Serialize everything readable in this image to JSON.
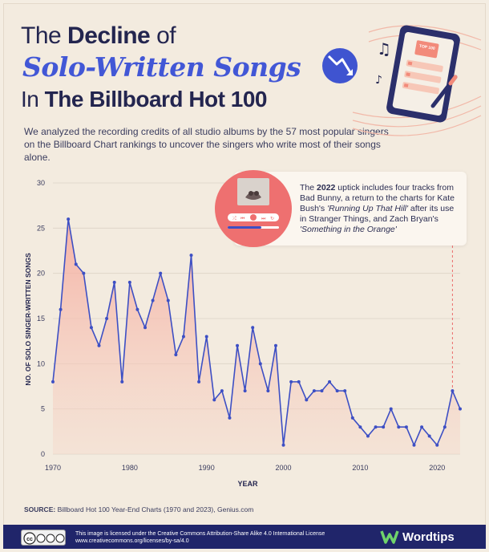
{
  "header": {
    "title_pre": "The ",
    "title_bold": "Decline",
    "title_post": " of",
    "title_line2": "Solo-Written Songs",
    "title_line3_pre": "In ",
    "title_line3_bold": "The Billboard Hot 100",
    "subtitle": "We analyzed the recording credits of all studio albums by the 57 most popular singers on the Billboard Chart rankings to uncover the singers who write most of their songs alone."
  },
  "illustration": {
    "phone_badge": "TOP 100"
  },
  "callout": {
    "pre": "The ",
    "year": "2022",
    "mid1": " uptick includes four tracks from Bad Bunny, a return to the charts for Kate Bush's ",
    "song1": "'Running Up That Hill'",
    "mid2": " after its use in Stranger Things, and Zach Bryan's ",
    "song2": "'Something in the Orange'"
  },
  "colors": {
    "line": "#3d4fc4",
    "area_top": "#f6a99c",
    "area_bottom": "#f6d9cb",
    "title_blue": "#4257d6",
    "navy": "#23254f",
    "callout_accent": "#ec6b6b"
  },
  "chart_data": {
    "type": "area",
    "title": "",
    "xlabel": "YEAR",
    "ylabel": "NO. OF SOLO SINGER-WRITTEN SONGS",
    "xlim": [
      1970,
      2023
    ],
    "ylim": [
      0,
      30
    ],
    "xticks": [
      1970,
      1980,
      1990,
      2000,
      2010,
      2020
    ],
    "yticks": [
      0,
      5,
      10,
      15,
      20,
      25,
      30
    ],
    "grid": "horizontal",
    "highlight_year": 2022,
    "x": [
      1970,
      1971,
      1972,
      1973,
      1974,
      1975,
      1976,
      1977,
      1978,
      1979,
      1980,
      1981,
      1982,
      1983,
      1984,
      1985,
      1986,
      1987,
      1988,
      1989,
      1990,
      1991,
      1992,
      1993,
      1994,
      1995,
      1996,
      1997,
      1998,
      1999,
      2000,
      2001,
      2002,
      2003,
      2004,
      2005,
      2006,
      2007,
      2008,
      2009,
      2010,
      2011,
      2012,
      2013,
      2014,
      2015,
      2016,
      2017,
      2018,
      2019,
      2020,
      2021,
      2022,
      2023
    ],
    "y": [
      8,
      16,
      26,
      21,
      20,
      14,
      12,
      15,
      19,
      8,
      19,
      16,
      14,
      17,
      20,
      17,
      11,
      13,
      22,
      8,
      13,
      6,
      7,
      4,
      12,
      7,
      14,
      10,
      7,
      12,
      1,
      8,
      8,
      6,
      7,
      7,
      8,
      7,
      7,
      4,
      3,
      2,
      3,
      3,
      5,
      3,
      3,
      1,
      3,
      2,
      1,
      3,
      7,
      5
    ]
  },
  "source": {
    "label": "SOURCE:",
    "text": " Billboard Hot 100 Year-End Charts (1970 and 2023), Genius.com"
  },
  "footer": {
    "license_line1": "This image is licensed under the Creative Commons Attribution-Share Alike 4.0 International License",
    "license_line2": "www.creativecommons.org/licenses/by-sa/4.0",
    "cc_badge": "cc BY NC SA",
    "brand": "Wordtips"
  }
}
